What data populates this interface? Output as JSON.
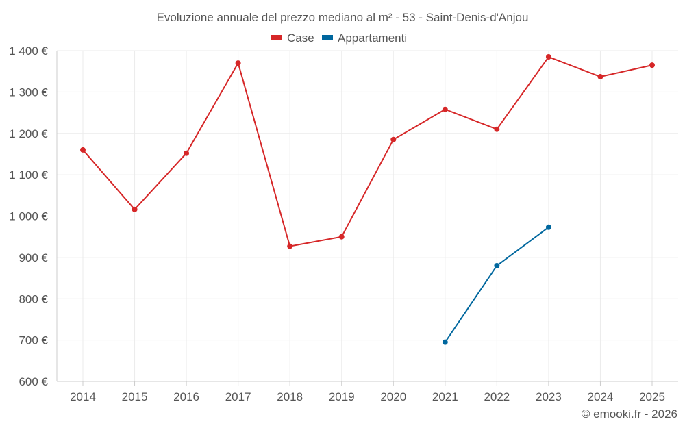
{
  "chart_data": {
    "type": "line",
    "title": "Evoluzione annuale del prezzo mediano al m² - 53 - Saint-Denis-d'Anjou",
    "x": [
      2014,
      2015,
      2016,
      2017,
      2018,
      2019,
      2020,
      2021,
      2022,
      2023,
      2024,
      2025
    ],
    "x_tick_labels": [
      "2014",
      "2015",
      "2016",
      "2017",
      "2018",
      "2019",
      "2020",
      "2021",
      "2022",
      "2023",
      "2024",
      "2025"
    ],
    "y_ticks": [
      600,
      700,
      800,
      900,
      1000,
      1100,
      1200,
      1300,
      1400
    ],
    "y_tick_labels": [
      "600 €",
      "700 €",
      "800 €",
      "900 €",
      "1 000 €",
      "1 100 €",
      "1 200 €",
      "1 300 €",
      "1 400 €"
    ],
    "ylim": [
      600,
      1400
    ],
    "grid": true,
    "legend_position": "top-center",
    "series": [
      {
        "name": "Case",
        "color": "#d62728",
        "values": [
          1160,
          1016,
          1152,
          1370,
          927,
          950,
          1185,
          1258,
          1210,
          1385,
          1337,
          1365
        ]
      },
      {
        "name": "Appartamenti",
        "color": "#00679e",
        "values": [
          null,
          null,
          null,
          null,
          null,
          null,
          null,
          695,
          880,
          973,
          null,
          null
        ]
      }
    ],
    "credit": "© emooki.fr - 2026"
  }
}
